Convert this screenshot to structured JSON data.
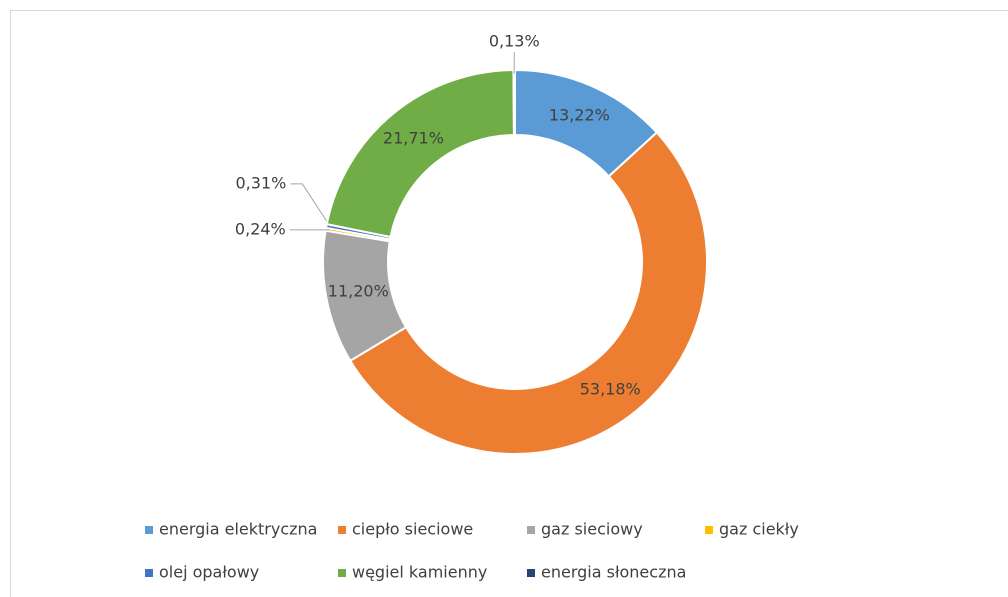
{
  "chart_data": {
    "type": "donut",
    "categories": [
      "energia elektryczna",
      "ciepło sieciowe",
      "gaz sieciowy",
      "gaz ciekły",
      "olej opałowy",
      "węgiel kamienny",
      "energia słoneczna"
    ],
    "values": [
      13.22,
      53.18,
      11.2,
      0.24,
      0.31,
      21.71,
      0.13
    ],
    "value_labels": [
      "13,22%",
      "53,18%",
      "11,20%",
      "0,24%",
      "0,31%",
      "21,71%",
      "0,13%"
    ],
    "colors": [
      "#5b9bd5",
      "#ed7d31",
      "#a5a5a5",
      "#ffc000",
      "#4472c4",
      "#70ad47",
      "#264478"
    ],
    "legend": "bottom"
  }
}
